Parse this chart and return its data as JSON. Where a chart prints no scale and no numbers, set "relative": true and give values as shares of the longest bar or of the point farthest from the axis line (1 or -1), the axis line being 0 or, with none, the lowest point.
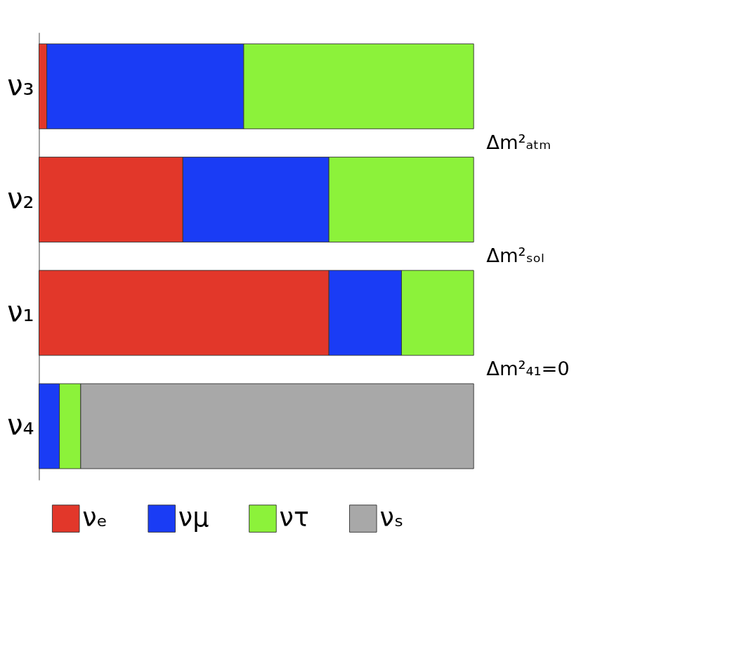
{
  "chart_data": {
    "type": "bar",
    "orientation": "horizontal",
    "stacked": true,
    "relative": true,
    "categories": [
      "ν₃",
      "ν₂",
      "ν₁",
      "ν₄"
    ],
    "series": [
      {
        "name": "νₑ",
        "color": "#e2372a",
        "values": [
          0.018,
          0.331,
          0.667,
          null
        ]
      },
      {
        "name": "νμ",
        "color": "#1a3cf5",
        "values": [
          0.453,
          0.336,
          0.167,
          0.047
        ]
      },
      {
        "name": "ντ",
        "color": "#8cf23a",
        "values": [
          0.529,
          0.333,
          0.166,
          0.049
        ]
      },
      {
        "name": "νₛ",
        "color": "#a8a8a8",
        "values": [
          null,
          null,
          null,
          0.904
        ]
      }
    ],
    "annotations": [
      "Δm²ₐₜₘ",
      "Δm²ₛₒₗ",
      "Δm²₄₁=0"
    ],
    "legend": "bottom"
  }
}
